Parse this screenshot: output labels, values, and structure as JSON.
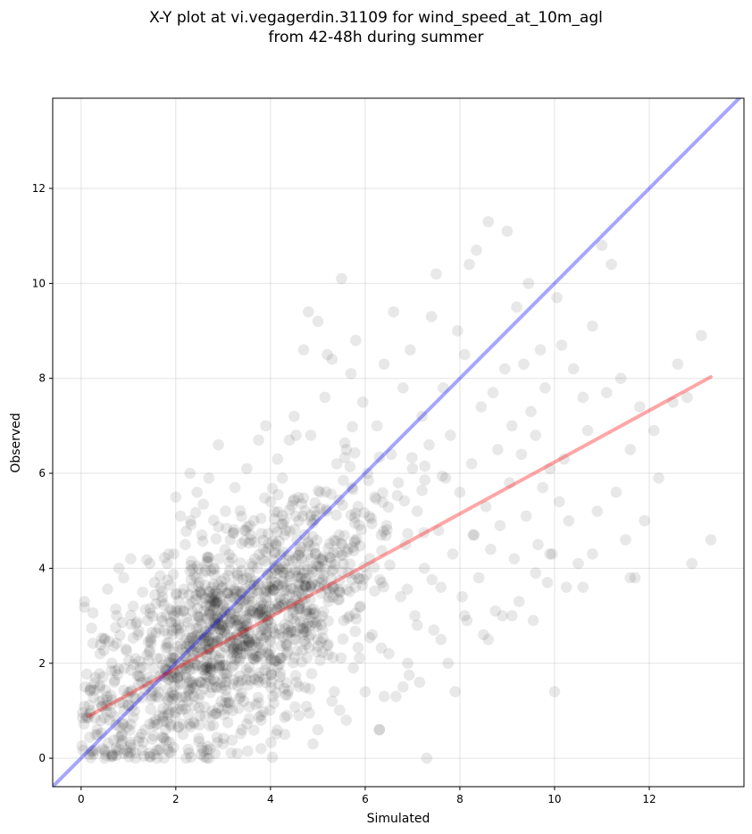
{
  "chart_data": {
    "type": "scatter",
    "title_line1": "X-Y plot at vi.vegagerdin.31109 for wind_speed_at_10m_agl",
    "title_line2": "from 42-48h during summer",
    "xlabel": "Simulated",
    "ylabel": "Observed",
    "xlim": [
      -0.6,
      14.0
    ],
    "ylim": [
      -0.6,
      13.9
    ],
    "xticks": [
      0,
      2,
      4,
      6,
      8,
      10,
      12
    ],
    "yticks": [
      0,
      2,
      4,
      6,
      8,
      10,
      12
    ],
    "grid": true,
    "colors": {
      "points": "#000000",
      "one_to_one": "#0000ff",
      "regression": "#ff0000"
    },
    "one_to_one_line": {
      "x": [
        -0.6,
        14.0
      ],
      "y": [
        -0.6,
        14.0
      ]
    },
    "regression_line": {
      "x": [
        0.15,
        13.3
      ],
      "y": [
        0.88,
        8.03
      ]
    },
    "scatter_model": {
      "n_points": 1500,
      "description_core_center": [
        3.1,
        2.6
      ],
      "note": "dense cloud of semi-transparent points, sampled"
    },
    "points": [
      [
        0.2,
        1.0
      ],
      [
        0.3,
        1.7
      ],
      [
        0.35,
        0.5
      ],
      [
        0.4,
        2.2
      ],
      [
        0.45,
        0.2
      ],
      [
        0.5,
        2.5
      ],
      [
        0.55,
        1.3
      ],
      [
        0.6,
        0.8
      ],
      [
        0.65,
        2.0
      ],
      [
        0.7,
        1.6
      ],
      [
        0.75,
        3.0
      ],
      [
        0.8,
        4.0
      ],
      [
        0.85,
        0.3
      ],
      [
        0.9,
        3.8
      ],
      [
        0.95,
        2.3
      ],
      [
        1.0,
        1.1
      ],
      [
        1.05,
        4.2
      ],
      [
        1.1,
        3.2
      ],
      [
        1.15,
        0.0
      ],
      [
        1.2,
        2.6
      ],
      [
        1.25,
        1.9
      ],
      [
        1.3,
        3.5
      ],
      [
        1.35,
        0.6
      ],
      [
        1.4,
        2.9
      ],
      [
        1.45,
        4.1
      ],
      [
        1.5,
        1.4
      ],
      [
        1.55,
        3.7
      ],
      [
        1.6,
        2.1
      ],
      [
        1.65,
        0.9
      ],
      [
        1.7,
        3.3
      ],
      [
        1.75,
        0.0
      ],
      [
        1.8,
        2.4
      ],
      [
        1.85,
        4.3
      ],
      [
        1.9,
        1.7
      ],
      [
        1.95,
        3.0
      ],
      [
        2.0,
        5.5
      ],
      [
        2.05,
        2.7
      ],
      [
        2.1,
        5.1
      ],
      [
        2.15,
        0.5
      ],
      [
        2.2,
        4.5
      ],
      [
        2.25,
        1.2
      ],
      [
        2.3,
        6.0
      ],
      [
        2.35,
        3.6
      ],
      [
        2.4,
        2.0
      ],
      [
        2.45,
        5.6
      ],
      [
        2.5,
        0.7
      ],
      [
        2.55,
        4.7
      ],
      [
        2.6,
        3.1
      ],
      [
        2.65,
        0.0
      ],
      [
        2.7,
        5.9
      ],
      [
        2.75,
        2.2
      ],
      [
        2.8,
        4.0
      ],
      [
        2.85,
        1.5
      ],
      [
        2.9,
        6.6
      ],
      [
        2.95,
        3.4
      ],
      [
        3.0,
        0.3
      ],
      [
        3.05,
        5.2
      ],
      [
        3.1,
        2.8
      ],
      [
        3.15,
        4.6
      ],
      [
        3.2,
        1.0
      ],
      [
        3.25,
        5.7
      ],
      [
        3.3,
        3.9
      ],
      [
        3.35,
        2.3
      ],
      [
        3.4,
        0.6
      ],
      [
        3.45,
        4.8
      ],
      [
        3.5,
        6.1
      ],
      [
        3.55,
        1.8
      ],
      [
        3.6,
        3.3
      ],
      [
        3.65,
        5.0
      ],
      [
        3.7,
        2.5
      ],
      [
        3.75,
        6.7
      ],
      [
        3.8,
        0.8
      ],
      [
        3.85,
        4.4
      ],
      [
        3.9,
        7.0
      ],
      [
        3.95,
        2.9
      ],
      [
        4.0,
        5.4
      ],
      [
        4.05,
        1.3
      ],
      [
        4.1,
        3.7
      ],
      [
        4.15,
        6.3
      ],
      [
        4.2,
        2.1
      ],
      [
        4.25,
        5.9
      ],
      [
        4.3,
        4.1
      ],
      [
        4.35,
        0.9
      ],
      [
        4.4,
        6.7
      ],
      [
        4.45,
        3.2
      ],
      [
        4.5,
        7.2
      ],
      [
        4.55,
        1.6
      ],
      [
        4.6,
        5.0
      ],
      [
        4.65,
        3.8
      ],
      [
        4.7,
        8.6
      ],
      [
        4.75,
        2.4
      ],
      [
        4.8,
        9.4
      ],
      [
        4.85,
        6.8
      ],
      [
        4.9,
        0.3
      ],
      [
        4.95,
        4.3
      ],
      [
        5.0,
        9.2
      ],
      [
        5.05,
        5.6
      ],
      [
        5.1,
        2.7
      ],
      [
        5.15,
        7.6
      ],
      [
        5.2,
        8.5
      ],
      [
        5.25,
        3.5
      ],
      [
        5.3,
        8.4
      ],
      [
        5.35,
        1.4
      ],
      [
        5.4,
        6.2
      ],
      [
        5.45,
        4.7
      ],
      [
        5.5,
        10.1
      ],
      [
        5.55,
        2.9
      ],
      [
        5.6,
        6.5
      ],
      [
        5.65,
        3.9
      ],
      [
        5.7,
        8.1
      ],
      [
        5.75,
        1.9
      ],
      [
        5.8,
        8.8
      ],
      [
        5.85,
        5.3
      ],
      [
        5.9,
        3.2
      ],
      [
        5.95,
        7.5
      ],
      [
        6.0,
        1.4
      ],
      [
        6.05,
        6.0
      ],
      [
        6.1,
        4.2
      ],
      [
        6.15,
        2.6
      ],
      [
        6.2,
        5.5
      ],
      [
        6.25,
        7.0
      ],
      [
        6.3,
        0.6
      ],
      [
        6.35,
        3.7
      ],
      [
        6.4,
        8.3
      ],
      [
        6.45,
        4.9
      ],
      [
        6.5,
        2.2
      ],
      [
        6.55,
        6.4
      ],
      [
        6.6,
        9.4
      ],
      [
        6.65,
        1.3
      ],
      [
        6.7,
        5.8
      ],
      [
        6.75,
        3.4
      ],
      [
        6.8,
        7.8
      ],
      [
        6.85,
        4.5
      ],
      [
        6.9,
        2.0
      ],
      [
        6.95,
        8.6
      ],
      [
        7.0,
        6.1
      ],
      [
        7.05,
        3.0
      ],
      [
        7.1,
        5.2
      ],
      [
        7.15,
        1.6
      ],
      [
        7.2,
        7.2
      ],
      [
        7.25,
        4.0
      ],
      [
        7.3,
        0.0
      ],
      [
        7.35,
        6.6
      ],
      [
        7.4,
        9.3
      ],
      [
        7.45,
        2.7
      ],
      [
        7.5,
        10.2
      ],
      [
        7.55,
        4.8
      ],
      [
        7.6,
        3.6
      ],
      [
        7.65,
        7.8
      ],
      [
        7.7,
        5.9
      ],
      [
        7.75,
        2.0
      ],
      [
        7.8,
        6.8
      ],
      [
        7.85,
        4.3
      ],
      [
        7.9,
        1.4
      ],
      [
        7.95,
        9.0
      ],
      [
        8.0,
        5.6
      ],
      [
        8.05,
        3.4
      ],
      [
        8.1,
        8.5
      ],
      [
        8.15,
        2.9
      ],
      [
        8.2,
        10.4
      ],
      [
        8.25,
        6.2
      ],
      [
        8.3,
        4.7
      ],
      [
        8.35,
        10.7
      ],
      [
        8.4,
        3.8
      ],
      [
        8.45,
        7.4
      ],
      [
        8.5,
        2.6
      ],
      [
        8.55,
        5.3
      ],
      [
        8.6,
        11.3
      ],
      [
        8.65,
        4.4
      ],
      [
        8.7,
        7.7
      ],
      [
        8.75,
        3.1
      ],
      [
        8.8,
        6.5
      ],
      [
        8.85,
        4.9
      ],
      [
        8.9,
        3.0
      ],
      [
        8.95,
        8.2
      ],
      [
        9.0,
        11.1
      ],
      [
        9.05,
        5.8
      ],
      [
        9.1,
        7.0
      ],
      [
        9.15,
        4.2
      ],
      [
        9.2,
        9.5
      ],
      [
        9.25,
        3.3
      ],
      [
        9.3,
        6.4
      ],
      [
        9.35,
        8.3
      ],
      [
        9.4,
        5.1
      ],
      [
        9.45,
        10.0
      ],
      [
        9.5,
        7.3
      ],
      [
        9.55,
        2.9
      ],
      [
        9.6,
        6.8
      ],
      [
        9.65,
        4.5
      ],
      [
        9.7,
        8.6
      ],
      [
        9.75,
        5.7
      ],
      [
        9.8,
        7.8
      ],
      [
        9.85,
        3.7
      ],
      [
        9.9,
        6.1
      ],
      [
        9.95,
        4.3
      ],
      [
        10.0,
        1.4
      ],
      [
        10.05,
        9.7
      ],
      [
        10.1,
        5.4
      ],
      [
        10.15,
        8.7
      ],
      [
        10.2,
        6.3
      ],
      [
        10.25,
        3.6
      ],
      [
        10.3,
        5.0
      ],
      [
        10.4,
        8.2
      ],
      [
        10.5,
        4.1
      ],
      [
        10.6,
        7.6
      ],
      [
        10.7,
        6.9
      ],
      [
        10.8,
        9.1
      ],
      [
        10.9,
        5.2
      ],
      [
        11.0,
        10.8
      ],
      [
        11.1,
        7.7
      ],
      [
        11.2,
        10.4
      ],
      [
        11.3,
        5.6
      ],
      [
        11.4,
        8.0
      ],
      [
        11.5,
        4.6
      ],
      [
        11.6,
        6.5
      ],
      [
        11.7,
        3.8
      ],
      [
        11.8,
        7.4
      ],
      [
        11.9,
        5.0
      ],
      [
        12.1,
        6.9
      ],
      [
        12.2,
        5.9
      ],
      [
        12.5,
        7.5
      ],
      [
        12.6,
        8.3
      ],
      [
        12.9,
        4.1
      ],
      [
        13.1,
        8.9
      ],
      [
        13.3,
        4.6
      ],
      [
        0.5,
        0.0
      ],
      [
        0.9,
        0.1
      ],
      [
        1.6,
        0.0
      ],
      [
        2.7,
        0.0
      ],
      [
        3.3,
        0.1
      ],
      [
        3.8,
        0.2
      ],
      [
        4.3,
        0.5
      ],
      [
        4.6,
        0.9
      ],
      [
        5.0,
        0.6
      ],
      [
        5.6,
        0.8
      ],
      [
        6.4,
        1.3
      ],
      [
        6.8,
        1.5
      ],
      [
        7.1,
        2.8
      ],
      [
        7.6,
        2.5
      ],
      [
        8.1,
        3.0
      ],
      [
        8.6,
        2.5
      ],
      [
        9.1,
        3.0
      ],
      [
        9.6,
        3.9
      ],
      [
        9.9,
        4.3
      ],
      [
        10.6,
        3.6
      ],
      [
        10.8,
        4.3
      ],
      [
        11.6,
        3.8
      ],
      [
        12.8,
        7.6
      ],
      [
        6.3,
        0.6
      ],
      [
        5.3,
        1.2
      ]
    ]
  }
}
